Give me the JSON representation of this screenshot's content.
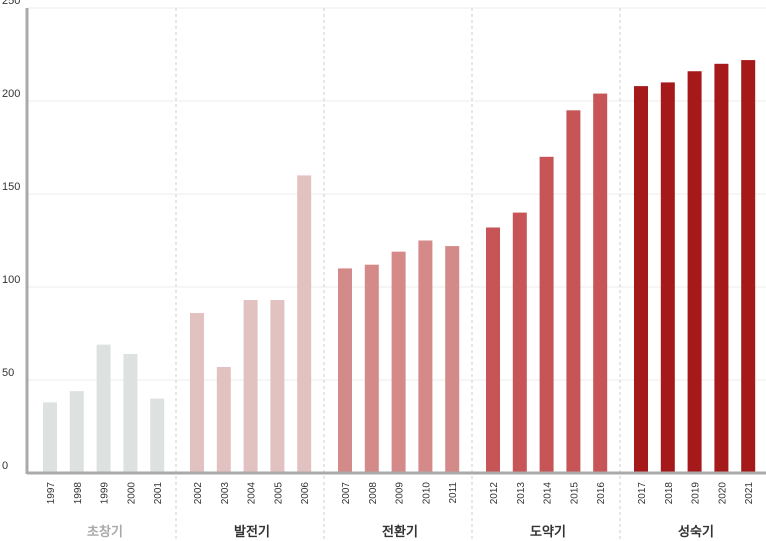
{
  "chart_data": {
    "type": "bar",
    "ylim": [
      0,
      250
    ],
    "yticks": [
      "0",
      "50",
      "100",
      "150",
      "200",
      "250"
    ],
    "grid": true,
    "categories": [
      "1997",
      "1998",
      "1999",
      "2000",
      "2001",
      "2002",
      "2003",
      "2004",
      "2005",
      "2006",
      "2007",
      "2008",
      "2009",
      "2010",
      "2011",
      "2012",
      "2013",
      "2014",
      "2015",
      "2016",
      "2017",
      "2018",
      "2019",
      "2020",
      "2021"
    ],
    "values": [
      38,
      44,
      69,
      64,
      40,
      86,
      57,
      93,
      93,
      160,
      110,
      112,
      119,
      125,
      122,
      132,
      140,
      170,
      195,
      204,
      208,
      210,
      216,
      220,
      222
    ],
    "phases": [
      {
        "label": "초창기",
        "start": 0,
        "end": 4,
        "color": "#dde2e0",
        "label_color": "#a8aaa9"
      },
      {
        "label": "발전기",
        "start": 5,
        "end": 9,
        "color": "#e2c2c1",
        "label_color": "#333333"
      },
      {
        "label": "전환기",
        "start": 10,
        "end": 14,
        "color": "#d48a88",
        "label_color": "#333333"
      },
      {
        "label": "도약기",
        "start": 15,
        "end": 19,
        "color": "#c75557",
        "label_color": "#333333"
      },
      {
        "label": "성숙기",
        "start": 20,
        "end": 24,
        "color": "#a6191b",
        "label_color": "#333333"
      }
    ]
  }
}
